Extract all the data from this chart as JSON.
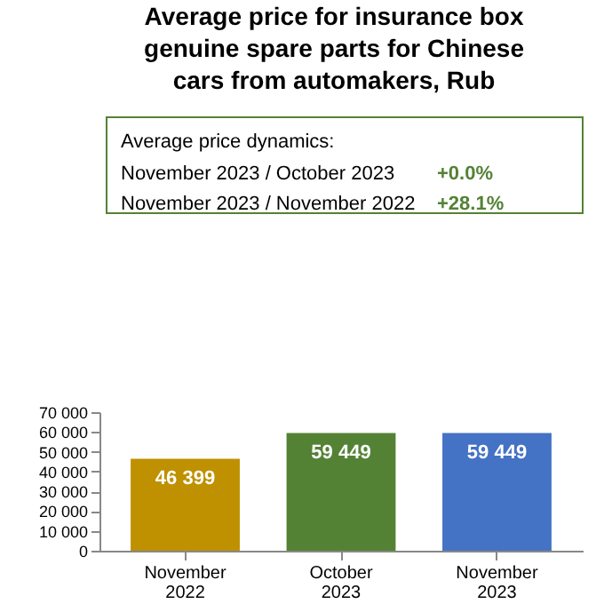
{
  "chart_data": {
    "type": "bar",
    "title": "Average price for insurance box genuine spare parts for Chinese cars from automakers, Rub",
    "annotations": [
      "Average price dynamics:",
      "November 2023 / October 2023",
      "+0.0%",
      "November 2023 / November 2022",
      "+28.1%"
    ],
    "categories": [
      "November 2022",
      "October 2023",
      "November 2023"
    ],
    "values": [
      46399,
      59449,
      59449
    ],
    "colors": [
      "#bf9000",
      "#548235",
      "#4472c4"
    ],
    "data_labels": true,
    "ylim": [
      0,
      70000
    ],
    "yticks": [
      {
        "value": 0,
        "label": "0"
      },
      {
        "value": 10000,
        "label": "10 000"
      },
      {
        "value": 20000,
        "label": "20 000"
      },
      {
        "value": 30000,
        "label": "30 000"
      },
      {
        "value": 40000,
        "label": "40 000"
      },
      {
        "value": 50000,
        "label": "50 000"
      },
      {
        "value": 60000,
        "label": "60 000"
      },
      {
        "value": 70000,
        "label": "70 000"
      }
    ],
    "tick_labels": true
  }
}
